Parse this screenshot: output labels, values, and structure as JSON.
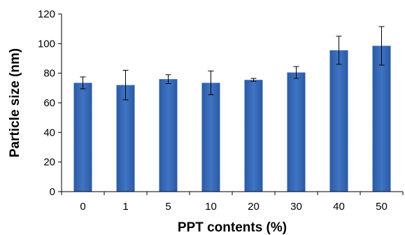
{
  "chart_data": {
    "type": "bar",
    "title": "",
    "xlabel": "PPT contents (%)",
    "ylabel": "Particle size (nm)",
    "categories": [
      "0",
      "1",
      "5",
      "10",
      "20",
      "30",
      "40",
      "50"
    ],
    "values": [
      73.5,
      72,
      76,
      73.5,
      75.5,
      80.5,
      95.5,
      98.5
    ],
    "error": [
      4,
      10,
      3,
      8,
      1,
      4,
      9.5,
      13
    ],
    "ylim": [
      0,
      120
    ],
    "yticks": [
      "0",
      "20",
      "40",
      "60",
      "80",
      "100",
      "120"
    ],
    "bar_color": "#3f74c4",
    "bar_color_dark": "#2b5aa2",
    "grid": false,
    "legend": "none"
  }
}
